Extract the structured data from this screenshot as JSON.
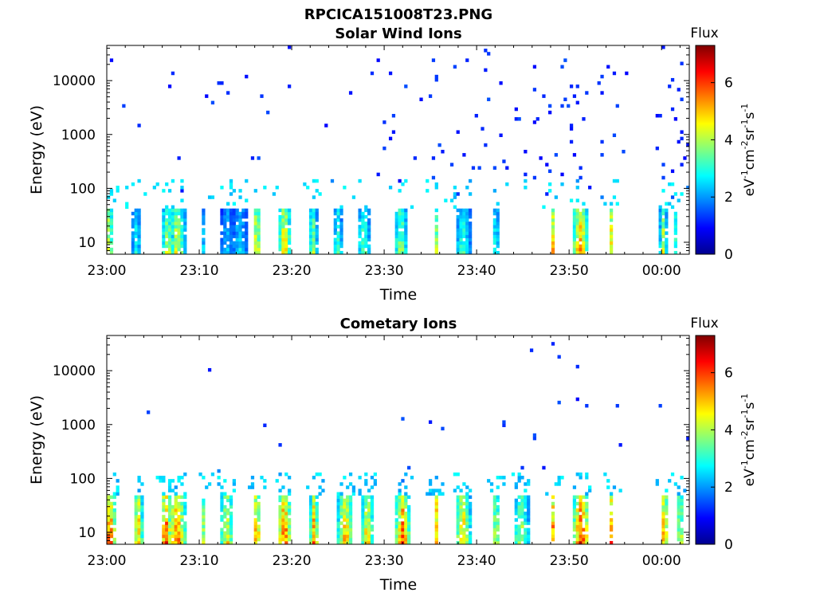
{
  "figure": {
    "title": "RPCICA151008T23.PNG"
  },
  "chart_data": [
    {
      "type": "heatmap",
      "title": "Solar Wind Ions",
      "xlabel": "Time",
      "ylabel": "Energy (eV)",
      "x_ticks": [
        "23:00",
        "23:10",
        "23:20",
        "23:30",
        "23:40",
        "23:50",
        "00:00"
      ],
      "x_range_minutes": [
        0,
        63
      ],
      "y_scale": "log",
      "y_ticks": [
        "10",
        "100",
        "1000",
        "10000"
      ],
      "y_range": [
        6,
        45000
      ],
      "colorbar": {
        "title": "Flux",
        "label": "eV-1cm-2sr-1s-1",
        "ticks": [
          "0",
          "2",
          "4",
          "6"
        ],
        "range": [
          0,
          7.3
        ],
        "colormap": "jet"
      },
      "bursts": [
        {
          "t": 0.2,
          "level": 4.8
        },
        {
          "t": 3.2,
          "level": 3.2
        },
        {
          "t": 6.6,
          "level": 4.6
        },
        {
          "t": 7.6,
          "level": 4.8
        },
        {
          "t": 10.5,
          "level": 2.8
        },
        {
          "t": 13.0,
          "level": 2.8
        },
        {
          "t": 14.4,
          "level": 2.9
        },
        {
          "t": 16.2,
          "level": 5.5
        },
        {
          "t": 19.2,
          "level": 5.4
        },
        {
          "t": 22.3,
          "level": 4.4
        },
        {
          "t": 25.0,
          "level": 3.6
        },
        {
          "t": 27.8,
          "level": 3.8
        },
        {
          "t": 31.8,
          "level": 4.4
        },
        {
          "t": 35.6,
          "level": 4.6
        },
        {
          "t": 38.5,
          "level": 3.6
        },
        {
          "t": 42.1,
          "level": 4.4
        },
        {
          "t": 48.2,
          "level": 5.6
        },
        {
          "t": 51.2,
          "level": 5.7
        },
        {
          "t": 54.6,
          "level": 5.7
        },
        {
          "t": 60.2,
          "level": 4.6
        },
        {
          "t": 61.6,
          "level": 4.2
        }
      ]
    },
    {
      "type": "heatmap",
      "title": "Cometary Ions",
      "xlabel": "Time",
      "ylabel": "Energy (eV)",
      "x_ticks": [
        "23:00",
        "23:10",
        "23:20",
        "23:30",
        "23:40",
        "23:50",
        "00:00"
      ],
      "x_range_minutes": [
        0,
        63
      ],
      "y_scale": "log",
      "y_ticks": [
        "10",
        "100",
        "1000",
        "10000"
      ],
      "y_range": [
        6,
        45000
      ],
      "colorbar": {
        "title": "Flux",
        "label": "eV-1cm-2sr-1s-1",
        "ticks": [
          "0",
          "2",
          "4",
          "6"
        ],
        "range": [
          0,
          7.3
        ],
        "colormap": "jet"
      },
      "bursts": [
        {
          "t": 0.3,
          "level": 6.6
        },
        {
          "t": 3.4,
          "level": 5.8
        },
        {
          "t": 6.4,
          "level": 6.6
        },
        {
          "t": 7.6,
          "level": 6.2
        },
        {
          "t": 10.5,
          "level": 4.8
        },
        {
          "t": 13.0,
          "level": 5.2
        },
        {
          "t": 16.2,
          "level": 6.4
        },
        {
          "t": 19.2,
          "level": 6.6
        },
        {
          "t": 22.4,
          "level": 6.0
        },
        {
          "t": 25.8,
          "level": 5.8
        },
        {
          "t": 28.2,
          "level": 5.6
        },
        {
          "t": 32.0,
          "level": 6.4
        },
        {
          "t": 35.6,
          "level": 6.2
        },
        {
          "t": 38.5,
          "level": 5.6
        },
        {
          "t": 42.1,
          "level": 6.2
        },
        {
          "t": 44.8,
          "level": 4.6
        },
        {
          "t": 48.3,
          "level": 6.6
        },
        {
          "t": 51.3,
          "level": 6.8
        },
        {
          "t": 54.6,
          "level": 6.6
        },
        {
          "t": 60.3,
          "level": 6.4
        },
        {
          "t": 62.0,
          "level": 5.6
        }
      ]
    }
  ]
}
